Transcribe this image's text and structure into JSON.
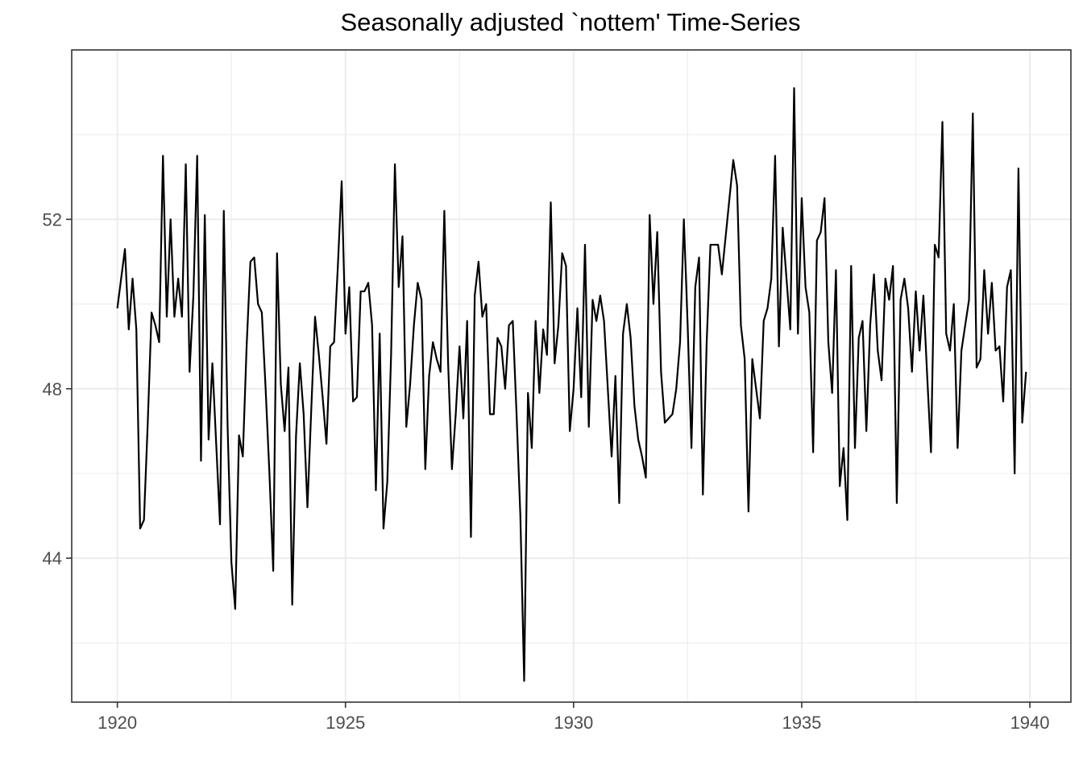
{
  "chart_data": {
    "type": "line",
    "title": "Seasonally adjusted `nottem' Time-Series",
    "xlabel": "",
    "ylabel": "",
    "xlim": [
      1919.0,
      1940.9
    ],
    "ylim": [
      40.6,
      56.0
    ],
    "grid": true,
    "x_ticks": [
      1920,
      1925,
      1930,
      1935,
      1940
    ],
    "x_tick_labels": [
      "1920",
      "1925",
      "1930",
      "1935",
      "1940"
    ],
    "y_ticks": [
      44,
      48,
      52
    ],
    "y_tick_labels": [
      "44",
      "48",
      "52"
    ],
    "colors": {
      "line": "#000000",
      "grid": "#ebebeb",
      "border": "#333333",
      "tick_text": "#4d4d4d"
    },
    "series": [
      {
        "start": 1920,
        "frequency": 12,
        "values": [
          49.9,
          50.6,
          51.3,
          49.4,
          50.6,
          49.4,
          44.7,
          44.9,
          47.2,
          49.8,
          49.5,
          49.1,
          53.5,
          49.7,
          52.0,
          49.7,
          50.6,
          49.7,
          53.3,
          48.4,
          50.2,
          53.5,
          46.3,
          52.1,
          46.8,
          48.6,
          46.7,
          44.8,
          52.2,
          47.1,
          43.9,
          42.8,
          46.9,
          46.4,
          49.0,
          51.0,
          51.1,
          50.0,
          49.8,
          48.0,
          46.0,
          43.7,
          51.2,
          48.1,
          47.0,
          48.5,
          42.9,
          46.9,
          48.6,
          47.4,
          45.2,
          47.5,
          49.7,
          48.8,
          47.8,
          46.7,
          49.0,
          49.1,
          50.9,
          52.9,
          49.3,
          50.4,
          47.7,
          47.8,
          50.3,
          50.3,
          50.5,
          49.5,
          45.6,
          49.3,
          44.7,
          45.8,
          48.8,
          53.3,
          50.4,
          51.6,
          47.1,
          48.1,
          49.5,
          50.5,
          50.1,
          46.1,
          48.3,
          49.1,
          48.7,
          48.4,
          52.2,
          48.6,
          46.1,
          47.4,
          49.0,
          47.3,
          49.6,
          44.5,
          50.2,
          51.0,
          49.7,
          50.0,
          47.4,
          47.4,
          49.2,
          49.0,
          48.0,
          49.5,
          49.6,
          47.4,
          45.0,
          41.1,
          47.9,
          46.6,
          49.6,
          47.9,
          49.4,
          48.8,
          52.4,
          48.6,
          49.5,
          51.2,
          50.9,
          47.0,
          48.0,
          49.9,
          47.8,
          51.4,
          47.1,
          50.1,
          49.6,
          50.2,
          49.6,
          48.0,
          46.4,
          48.3,
          45.3,
          49.3,
          50.0,
          49.2,
          47.6,
          46.8,
          46.4,
          45.9,
          52.1,
          50.0,
          51.7,
          48.4,
          47.2,
          47.3,
          47.4,
          48.0,
          49.1,
          52.0,
          49.5,
          46.6,
          50.4,
          51.1,
          45.5,
          49.1,
          51.4,
          51.4,
          51.4,
          50.7,
          51.6,
          52.5,
          53.4,
          52.8,
          49.5,
          48.7,
          45.1,
          48.7,
          48.0,
          47.3,
          49.6,
          49.9,
          50.6,
          53.5,
          49.0,
          51.8,
          50.6,
          49.4,
          55.1,
          49.3,
          52.5,
          50.4,
          49.8,
          46.5,
          51.5,
          51.7,
          52.5,
          49.1,
          47.9,
          50.8,
          45.7,
          46.6,
          44.9,
          50.9,
          46.6,
          49.2,
          49.6,
          47.0,
          49.5,
          50.7,
          48.9,
          48.2,
          50.6,
          50.1,
          50.9,
          45.3,
          50.1,
          50.6,
          49.9,
          48.4,
          50.3,
          48.9,
          50.2,
          48.3,
          46.5,
          51.4,
          51.1,
          54.3,
          49.3,
          48.9,
          50.0,
          46.6,
          48.9,
          49.5,
          50.1,
          54.5,
          48.5,
          48.7,
          50.8,
          49.3,
          50.5,
          48.9,
          49.0,
          47.7,
          50.4,
          50.8,
          46.0,
          53.2,
          47.2,
          48.4
        ]
      }
    ]
  }
}
